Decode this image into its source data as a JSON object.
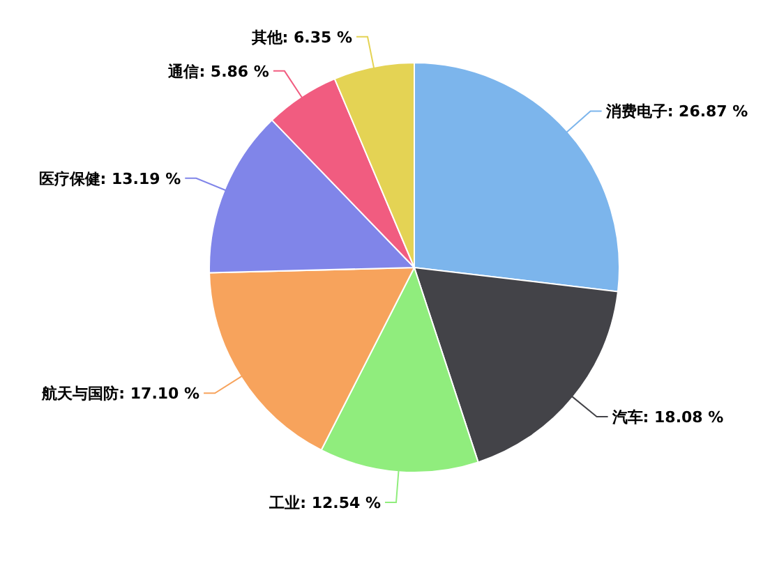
{
  "chart_data": {
    "type": "pie",
    "categories": [
      "消费电子",
      "汽车",
      "工业",
      "航天与国防",
      "医疗保健",
      "通信",
      "其他"
    ],
    "values": [
      26.87,
      18.08,
      12.54,
      17.1,
      13.19,
      5.86,
      6.35
    ],
    "colors": [
      "#7cb5ec",
      "#434348",
      "#90ed7d",
      "#f7a35c",
      "#8085e9",
      "#f15c80",
      "#e4d354"
    ],
    "value_labels": [
      ": 26.87 %",
      ": 18.08 %",
      ": 12.54 %",
      ": 17.10 %",
      ": 13.19 %",
      ": 5.86 %",
      ": 6.35 %"
    ]
  }
}
